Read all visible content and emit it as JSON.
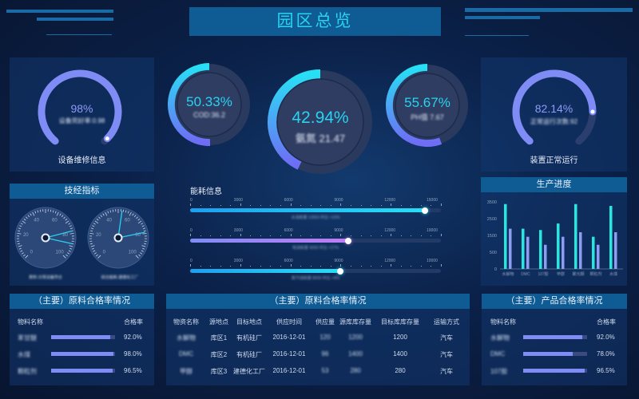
{
  "header": {
    "title": "园区总览"
  },
  "colors": {
    "accent": "#27d3f0",
    "purple": "#7f8cf6",
    "header_bar": "#0f5b93"
  },
  "equipment": {
    "percent": "98%",
    "value": 0.98,
    "sub": "设备完好率:0.98",
    "label": "设备维修信息"
  },
  "rings": [
    {
      "percent": "50.33%",
      "value": 50.33,
      "sub": "COD:36.2"
    },
    {
      "percent": "42.94%",
      "value": 42.94,
      "sub": "氨氮  21.47"
    },
    {
      "percent": "55.67%",
      "value": 55.67,
      "sub": "PH值  7.67"
    }
  ],
  "operation": {
    "percent": "82.14%",
    "value": 0.8214,
    "sub": "正常运行次数:92",
    "label": "装置正常运行"
  },
  "tech": {
    "title": "技经指标",
    "ticks": [
      "0",
      "20",
      "40",
      "60",
      "80",
      "100"
    ],
    "gauges": [
      {
        "needles": [
          78,
          88
        ],
        "caption": "累积-日常设备符合"
      },
      {
        "needles": [
          53,
          79
        ],
        "caption": "综合能耗-建德化工厂"
      }
    ]
  },
  "energy": {
    "title": "能耗信息",
    "bars": [
      {
        "ticks": [
          "0",
          "3000",
          "6000",
          "9000",
          "12000",
          "15000"
        ],
        "fraction": 0.935,
        "caption": "水消耗量  13563    环比  +10%",
        "color": "#27d3f0"
      },
      {
        "ticks": [
          "0",
          "3000",
          "6000",
          "9000",
          "12000",
          "10000"
        ],
        "fraction": 0.63,
        "caption": "电消耗量  9000    环比  +27%",
        "color": "#b57cf5"
      },
      {
        "ticks": [
          "0",
          "3000",
          "6000",
          "9000",
          "12000",
          "10000"
        ],
        "fraction": 0.6,
        "caption": "蒸汽消耗量  8000    环比  +8%",
        "color": "#27d3f0"
      }
    ]
  },
  "chart_data": {
    "type": "bar",
    "title": "生产进度",
    "categories": [
      "水解物",
      "DMC",
      "107胶",
      "甲醇",
      "聚光酮",
      "颗粒剂",
      "水煤"
    ],
    "yticks": [
      0,
      500,
      1500,
      2500,
      3500
    ],
    "series": [
      {
        "values": [
          3370,
          1900,
          1820,
          2210,
          3370,
          1420,
          3260
        ],
        "color": "#27e8e0"
      },
      {
        "values": [
          1900,
          1420,
          940,
          1420,
          1690,
          940,
          1690
        ],
        "color": "#8f9cf5"
      }
    ]
  },
  "raw_quality": {
    "title": "（主要）原料合格率情况",
    "headers": [
      "物料名称",
      "合格率"
    ],
    "rows": [
      {
        "name": "苯甘醚",
        "rate": "92.0%",
        "value": 92
      },
      {
        "name": "水煤",
        "rate": "98.0%",
        "value": 98
      },
      {
        "name": "颗粒剂",
        "rate": "96.5%",
        "value": 96.5
      }
    ]
  },
  "supply": {
    "title": "（主要）原料合格率情况",
    "headers": [
      "物资名称",
      "源地点",
      "目标地点",
      "供应时间",
      "供应量",
      "源库库存量",
      "目标库库存量",
      "运输方式"
    ],
    "rows": [
      [
        "水解物",
        "库区1",
        "有机硅厂",
        "2016-12-01",
        "120",
        "1200",
        "1200",
        "汽车"
      ],
      [
        "DMC",
        "库区2",
        "有机硅厂",
        "2016-12-01",
        "96",
        "1400",
        "1400",
        "汽车"
      ],
      [
        "甲醇",
        "库区3",
        "建德化工厂",
        "2016-12-01",
        "53",
        "280",
        "280",
        "汽车"
      ]
    ]
  },
  "product_quality": {
    "title": "（主要）产品合格率情况",
    "headers": [
      "物料名称",
      "合格率"
    ],
    "rows": [
      {
        "name": "水解物",
        "rate": "92.0%",
        "value": 92
      },
      {
        "name": "DMC",
        "rate": "78.0%",
        "value": 78
      },
      {
        "name": "107胶",
        "rate": "96.5%",
        "value": 96.5
      }
    ]
  }
}
